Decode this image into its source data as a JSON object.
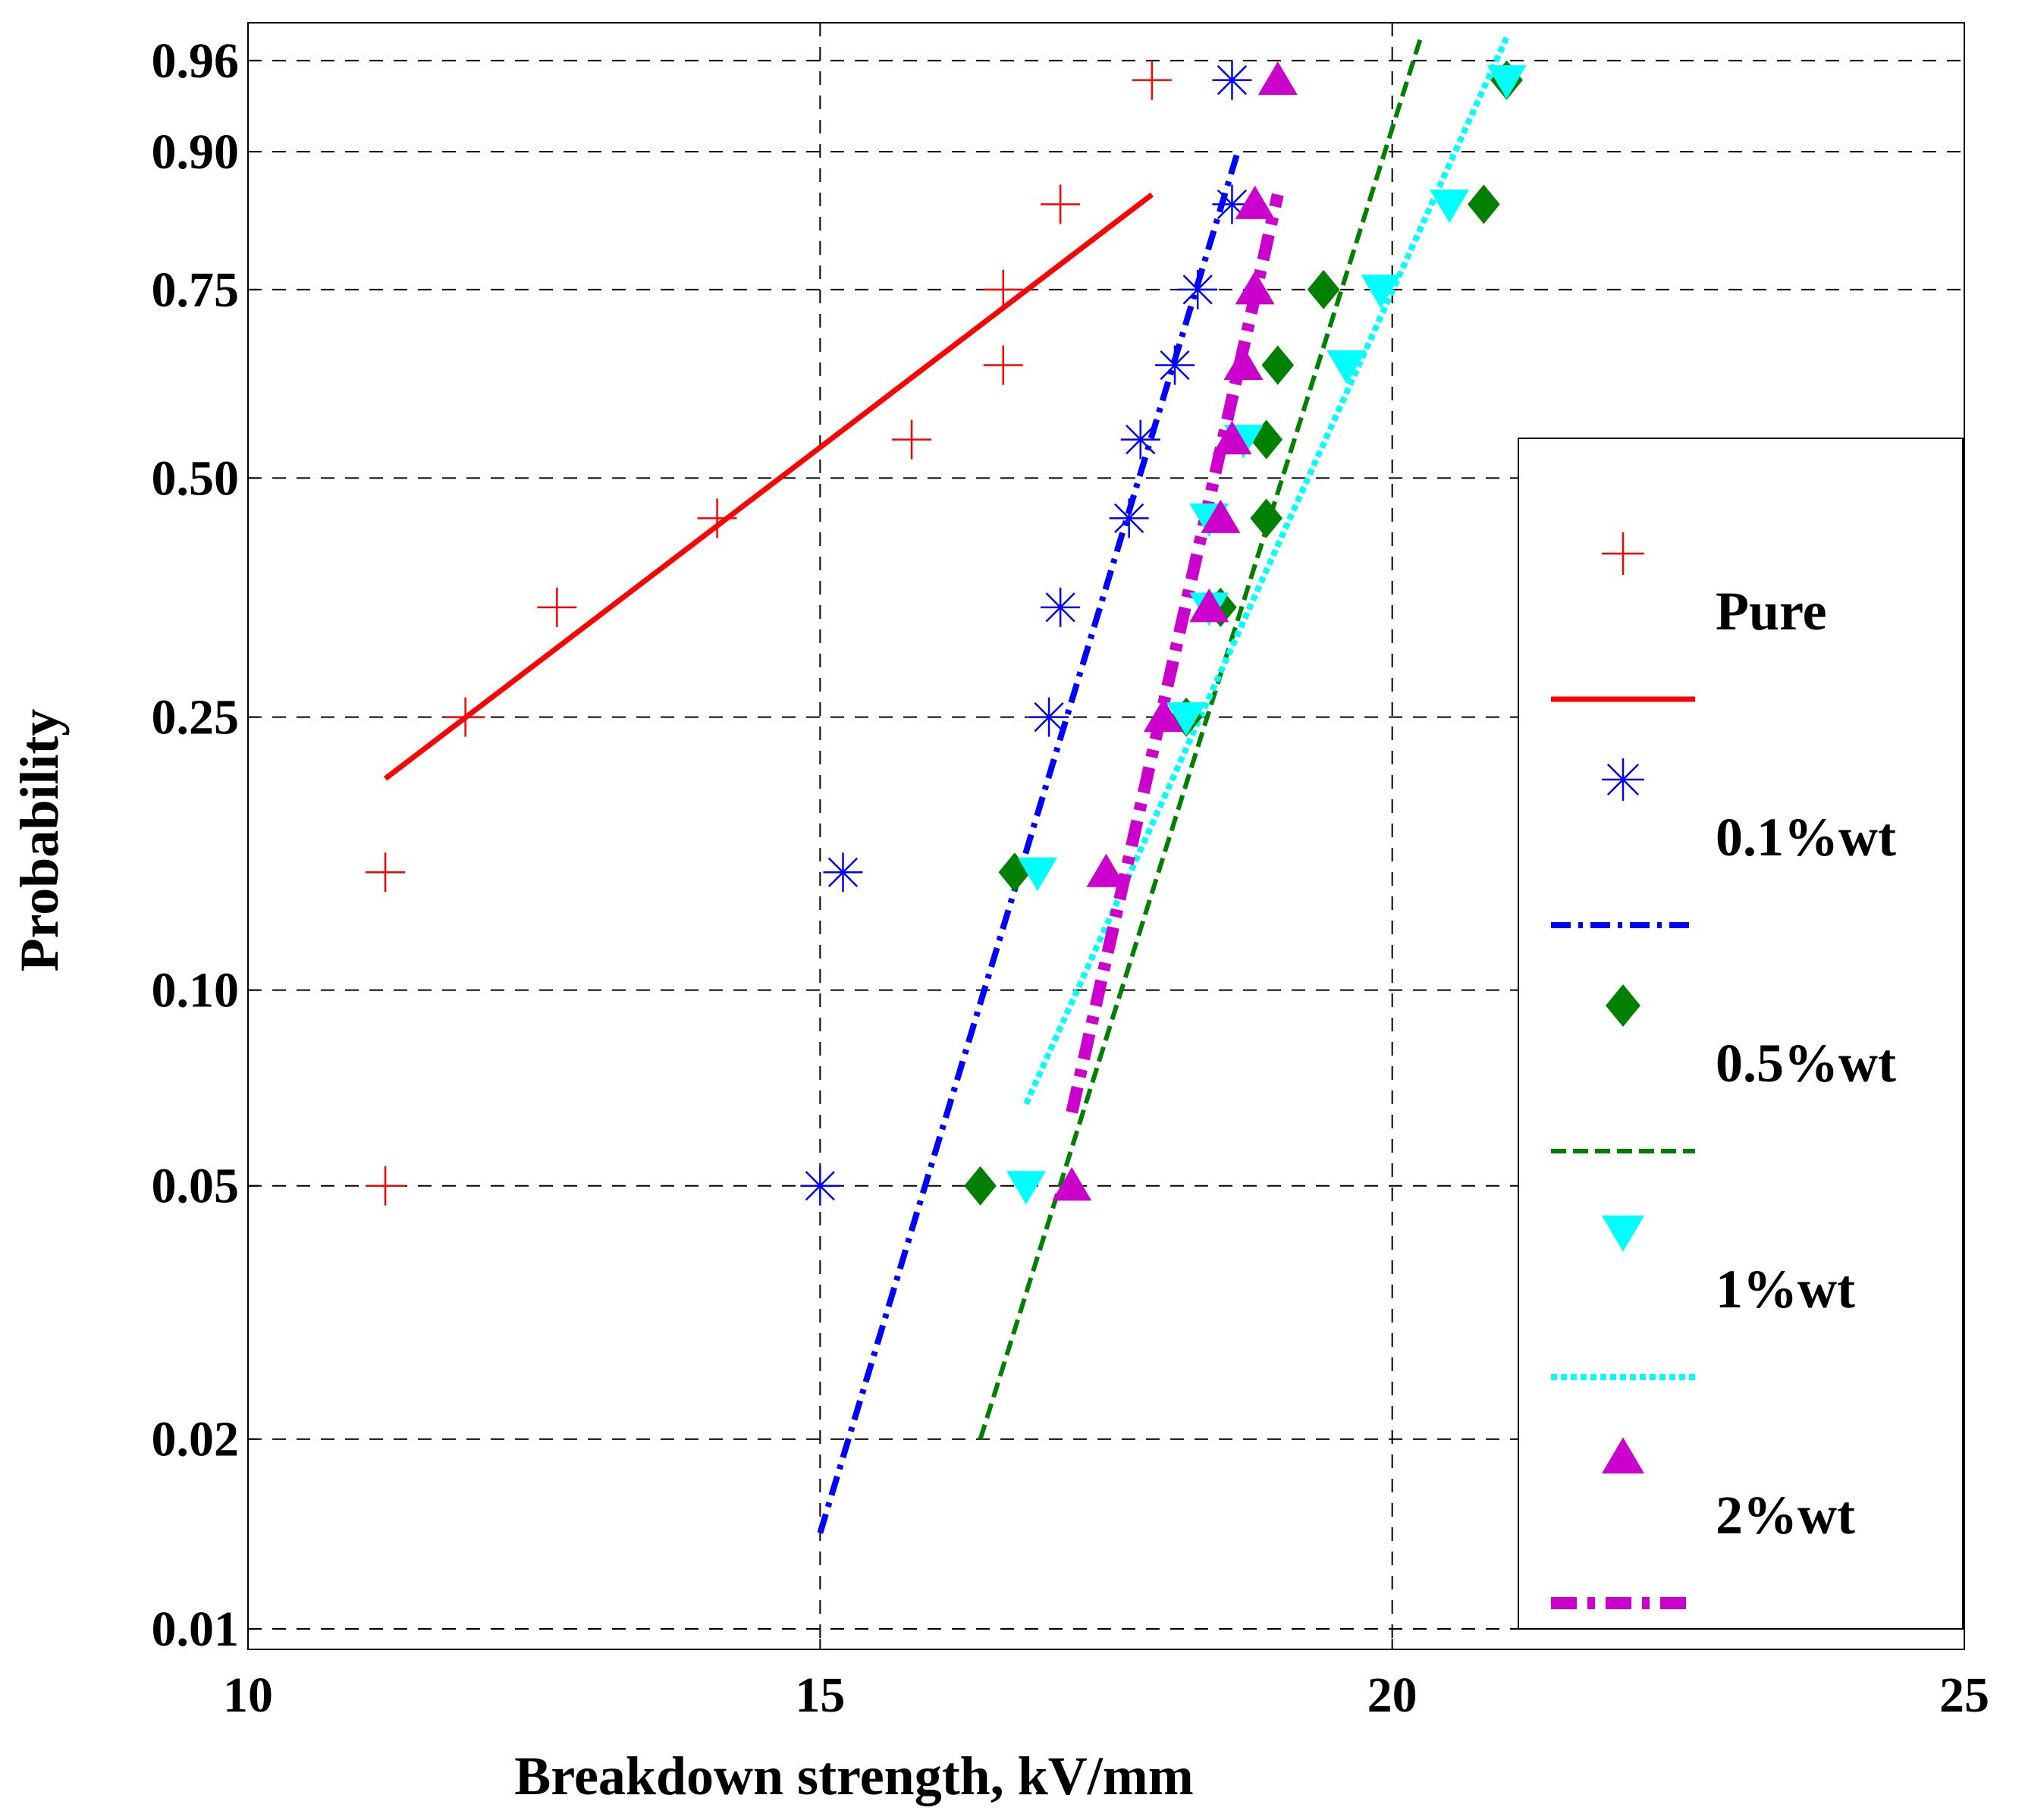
{
  "chart_data": {
    "type": "scatter",
    "title": "",
    "xlabel": "Breakdown strength, kV/mm",
    "ylabel": "Probability",
    "xlim": [
      10,
      25
    ],
    "ylim": [
      0.01,
      0.99
    ],
    "yscale": "weibull",
    "grid": true,
    "legend_position": "right",
    "x_ticks": [
      10,
      15,
      20,
      25
    ],
    "y_ticks": [
      0.01,
      0.02,
      0.05,
      0.1,
      0.25,
      0.5,
      0.75,
      0.9,
      0.96
    ],
    "y_tick_labels": [
      "0.01",
      "0.02",
      "0.05",
      "0.10",
      "0.25",
      "0.50",
      "0.75",
      "0.90",
      "0.96"
    ],
    "series": [
      {
        "name": "Pure",
        "color": "#ff0000",
        "marker": "plus",
        "line": "solid",
        "points": [
          [
            11.2,
            0.05
          ],
          [
            11.2,
            0.15
          ],
          [
            11.9,
            0.25
          ],
          [
            12.7,
            0.35
          ],
          [
            14.1,
            0.45
          ],
          [
            15.8,
            0.55
          ],
          [
            16.6,
            0.65
          ],
          [
            16.6,
            0.75
          ],
          [
            17.1,
            0.85
          ],
          [
            17.9,
            0.95
          ]
        ],
        "fit": [
          [
            11.2,
            0.205
          ],
          [
            17.9,
            0.86
          ]
        ]
      },
      {
        "name": "0.1%wt",
        "color": "#0000ff",
        "marker": "asterisk",
        "line": "dashdot",
        "points": [
          [
            15.0,
            0.05
          ],
          [
            15.2,
            0.15
          ],
          [
            17.0,
            0.25
          ],
          [
            17.1,
            0.35
          ],
          [
            17.7,
            0.45
          ],
          [
            17.8,
            0.55
          ],
          [
            18.1,
            0.65
          ],
          [
            18.3,
            0.75
          ],
          [
            18.6,
            0.85
          ],
          [
            18.6,
            0.95
          ]
        ],
        "fit": [
          [
            15.0,
            0.0142
          ],
          [
            18.65,
            0.9
          ]
        ]
      },
      {
        "name": "0.5%wt",
        "color": "#008000",
        "marker": "diamond",
        "line": "dashed",
        "points": [
          [
            16.4,
            0.05
          ],
          [
            16.7,
            0.15
          ],
          [
            18.2,
            0.25
          ],
          [
            18.5,
            0.35
          ],
          [
            18.9,
            0.45
          ],
          [
            18.9,
            0.55
          ],
          [
            19.0,
            0.65
          ],
          [
            19.4,
            0.75
          ],
          [
            20.8,
            0.85
          ],
          [
            21.0,
            0.95
          ]
        ],
        "fit": [
          [
            16.4,
            0.02
          ],
          [
            20.25,
            0.97
          ]
        ]
      },
      {
        "name": "1%wt",
        "color": "#00ffff",
        "marker": "triangle-down",
        "line": "dotted",
        "points": [
          [
            16.8,
            0.05
          ],
          [
            16.9,
            0.15
          ],
          [
            18.2,
            0.25
          ],
          [
            18.4,
            0.35
          ],
          [
            18.4,
            0.45
          ],
          [
            18.7,
            0.55
          ],
          [
            19.6,
            0.65
          ],
          [
            19.9,
            0.75
          ],
          [
            20.5,
            0.85
          ],
          [
            21.0,
            0.95
          ]
        ],
        "fit": [
          [
            16.8,
            0.067
          ],
          [
            21.0,
            0.97
          ]
        ]
      },
      {
        "name": "2%wt",
        "color": "#cc00cc",
        "marker": "triangle-up",
        "line": "dashdot-thick",
        "points": [
          [
            17.2,
            0.05
          ],
          [
            17.5,
            0.15
          ],
          [
            18.0,
            0.25
          ],
          [
            18.4,
            0.35
          ],
          [
            18.5,
            0.45
          ],
          [
            18.6,
            0.55
          ],
          [
            18.7,
            0.65
          ],
          [
            18.8,
            0.75
          ],
          [
            18.8,
            0.85
          ],
          [
            19.0,
            0.95
          ]
        ],
        "fit": [
          [
            17.2,
            0.065
          ],
          [
            19.0,
            0.86
          ]
        ]
      }
    ]
  }
}
